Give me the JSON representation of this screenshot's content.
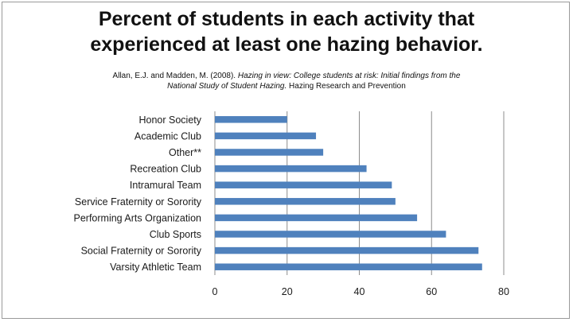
{
  "title_lines": [
    "Percent of students in each activity that",
    "experienced at least one hazing behavior."
  ],
  "citation": {
    "authors": "Allan, E.J. and Madden, M. (2008).",
    "work_title_1": "Hazing in view: College students at risk:  Initial findings from the",
    "work_title_2": "National Study of Student Hazing.",
    "publisher": "Hazing Research and Prevention"
  },
  "colors": {
    "bar": "#4f81bd",
    "grid": "#8c8c8c",
    "axis": "#8c8c8c"
  },
  "chart_data": {
    "type": "bar",
    "orientation": "horizontal",
    "title": "Percent of students in each activity that experienced at least one hazing behavior.",
    "categories": [
      "Honor Society",
      "Academic Club",
      "Other**",
      "Recreation Club",
      "Intramural Team",
      "Service Fraternity or Sorority",
      "Performing Arts Organization",
      "Club Sports",
      "Social Fraternity or Sorority",
      "Varsity Athletic Team"
    ],
    "values": [
      20,
      28,
      30,
      42,
      49,
      50,
      56,
      64,
      73,
      74
    ],
    "xlim": [
      0,
      80
    ],
    "xticks": [
      "0",
      "20",
      "40",
      "60",
      "80"
    ],
    "xlabel": "",
    "ylabel": "",
    "grid": true,
    "legend": "none"
  }
}
